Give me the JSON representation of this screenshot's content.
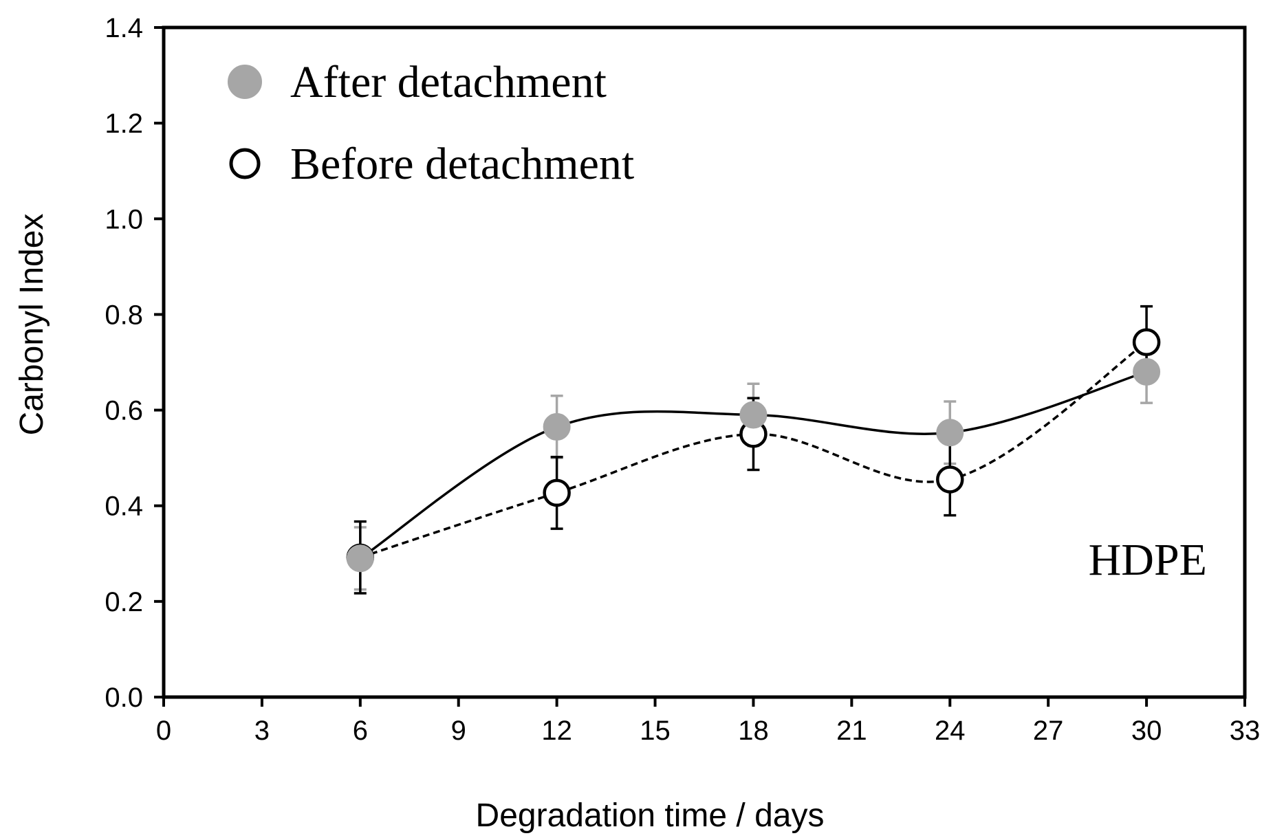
{
  "chart_data": {
    "type": "scatter",
    "title": "",
    "xlabel": "Degradation time / days",
    "ylabel": "Carbonyl Index",
    "xlim": [
      0,
      33
    ],
    "ylim": [
      0,
      1.4
    ],
    "xticks": [
      "0",
      "3",
      "6",
      "9",
      "12",
      "15",
      "18",
      "21",
      "24",
      "27",
      "30",
      "33"
    ],
    "yticks": [
      "0.0",
      "0.2",
      "0.4",
      "0.6",
      "0.8",
      "1.0",
      "1.2",
      "1.4"
    ],
    "grid": false,
    "legend_position": "top-left",
    "annotation": "HDPE",
    "series": [
      {
        "name": "After detachment",
        "marker": "filled-circle",
        "line": "solid",
        "color": "#a6a6a6",
        "x": [
          6,
          12,
          18,
          24,
          30
        ],
        "y": [
          0.29,
          0.565,
          0.59,
          0.553,
          0.68
        ],
        "err": [
          0.065,
          0.065,
          0.065,
          0.065,
          0.065
        ]
      },
      {
        "name": "Before detachment",
        "marker": "open-circle",
        "line": "dashed",
        "color": "#000000",
        "x": [
          6,
          12,
          18,
          24,
          30
        ],
        "y": [
          0.292,
          0.427,
          0.55,
          0.455,
          0.742
        ],
        "err": [
          0.075,
          0.075,
          0.075,
          0.075,
          0.075
        ]
      }
    ]
  }
}
